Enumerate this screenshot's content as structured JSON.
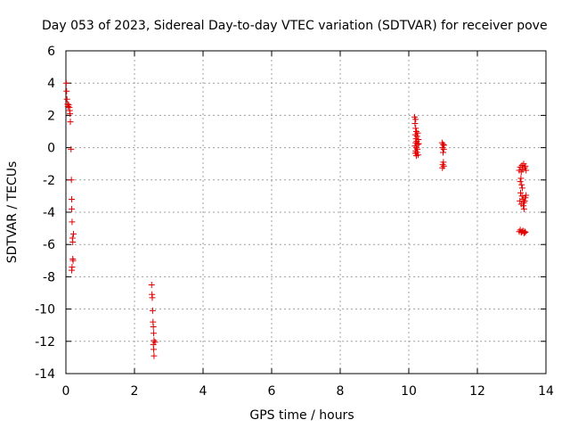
{
  "chart_data": {
    "type": "scatter",
    "title": "Day 053 of 2023, Sidereal Day-to-day VTEC variation (SDTVAR) for receiver pove",
    "xlabel": "GPS time / hours",
    "ylabel": "SDTVAR / TECUs",
    "xlim": [
      0,
      14
    ],
    "ylim": [
      -14,
      6
    ],
    "x_ticks": [
      0,
      2,
      4,
      6,
      8,
      10,
      12,
      14
    ],
    "y_ticks": [
      -14,
      -12,
      -10,
      -8,
      -6,
      -4,
      -2,
      0,
      2,
      4,
      6
    ],
    "x_tick_labels": [
      "0",
      "2",
      "4",
      "6",
      "8",
      "10",
      "12",
      "14"
    ],
    "y_tick_labels": [
      "-14",
      "-12",
      "-10",
      "-8",
      "-6",
      "-4",
      "-2",
      "0",
      "2",
      "4",
      "6"
    ],
    "grid": true,
    "marker": "+",
    "color": "#e00000",
    "series": [
      {
        "name": "SDTVAR",
        "points": [
          [
            0.01,
            4.0
          ],
          [
            0.02,
            3.5
          ],
          [
            0.03,
            3.0
          ],
          [
            0.05,
            2.7
          ],
          [
            0.06,
            2.55
          ],
          [
            0.08,
            2.65
          ],
          [
            0.1,
            2.5
          ],
          [
            0.11,
            2.3
          ],
          [
            0.12,
            2.1
          ],
          [
            0.13,
            1.6
          ],
          [
            0.15,
            -0.1
          ],
          [
            0.16,
            -2.0
          ],
          [
            0.17,
            -3.2
          ],
          [
            0.17,
            -3.8
          ],
          [
            0.18,
            -4.6
          ],
          [
            0.19,
            -5.6
          ],
          [
            0.2,
            -5.85
          ],
          [
            0.22,
            -5.35
          ],
          [
            0.2,
            -6.9
          ],
          [
            0.18,
            -7.4
          ],
          [
            0.17,
            -7.6
          ],
          [
            0.21,
            -7.0
          ],
          [
            2.5,
            -8.5
          ],
          [
            2.51,
            -9.1
          ],
          [
            2.52,
            -9.3
          ],
          [
            2.53,
            -10.1
          ],
          [
            2.54,
            -10.8
          ],
          [
            2.55,
            -11.1
          ],
          [
            2.56,
            -11.5
          ],
          [
            2.57,
            -11.95
          ],
          [
            2.6,
            -12.05
          ],
          [
            2.55,
            -12.2
          ],
          [
            2.56,
            -12.5
          ],
          [
            2.57,
            -12.9
          ],
          [
            10.17,
            1.9
          ],
          [
            10.2,
            1.75
          ],
          [
            10.18,
            1.5
          ],
          [
            10.2,
            1.2
          ],
          [
            10.22,
            1.0
          ],
          [
            10.19,
            0.8
          ],
          [
            10.24,
            0.7
          ],
          [
            10.21,
            0.55
          ],
          [
            10.23,
            0.4
          ],
          [
            10.2,
            0.3
          ],
          [
            10.26,
            0.2
          ],
          [
            10.18,
            0.1
          ],
          [
            10.22,
            0.0
          ],
          [
            10.25,
            -0.1
          ],
          [
            10.2,
            -0.2
          ],
          [
            10.24,
            -0.3
          ],
          [
            10.19,
            -0.35
          ],
          [
            10.27,
            -0.45
          ],
          [
            10.22,
            -0.5
          ],
          [
            10.28,
            0.5
          ],
          [
            10.26,
            0.9
          ],
          [
            10.29,
            0.25
          ],
          [
            10.97,
            0.3
          ],
          [
            11.0,
            0.2
          ],
          [
            11.03,
            0.15
          ],
          [
            10.98,
            0.0
          ],
          [
            11.02,
            -0.1
          ],
          [
            11.0,
            -0.3
          ],
          [
            11.01,
            -0.9
          ],
          [
            10.99,
            -1.05
          ],
          [
            11.02,
            -1.15
          ],
          [
            10.98,
            -1.25
          ],
          [
            13.22,
            -1.4
          ],
          [
            13.25,
            -1.2
          ],
          [
            13.28,
            -1.5
          ],
          [
            13.3,
            -1.1
          ],
          [
            13.32,
            -1.35
          ],
          [
            13.35,
            -1.0
          ],
          [
            13.38,
            -1.25
          ],
          [
            13.4,
            -1.15
          ],
          [
            13.42,
            -1.4
          ],
          [
            13.27,
            -1.9
          ],
          [
            13.25,
            -2.1
          ],
          [
            13.29,
            -2.3
          ],
          [
            13.31,
            -2.5
          ],
          [
            13.26,
            -2.8
          ],
          [
            13.3,
            -3.0
          ],
          [
            13.33,
            -3.2
          ],
          [
            13.36,
            -3.4
          ],
          [
            13.38,
            -3.3
          ],
          [
            13.24,
            -3.3
          ],
          [
            13.28,
            -3.5
          ],
          [
            13.34,
            -3.6
          ],
          [
            13.4,
            -3.1
          ],
          [
            13.42,
            -2.95
          ],
          [
            13.36,
            -3.8
          ],
          [
            13.25,
            -5.1
          ],
          [
            13.28,
            -5.25
          ],
          [
            13.3,
            -5.2
          ],
          [
            13.33,
            -5.15
          ],
          [
            13.36,
            -5.3
          ],
          [
            13.38,
            -5.2
          ],
          [
            13.4,
            -5.25
          ],
          [
            13.22,
            -5.2
          ]
        ]
      }
    ]
  }
}
